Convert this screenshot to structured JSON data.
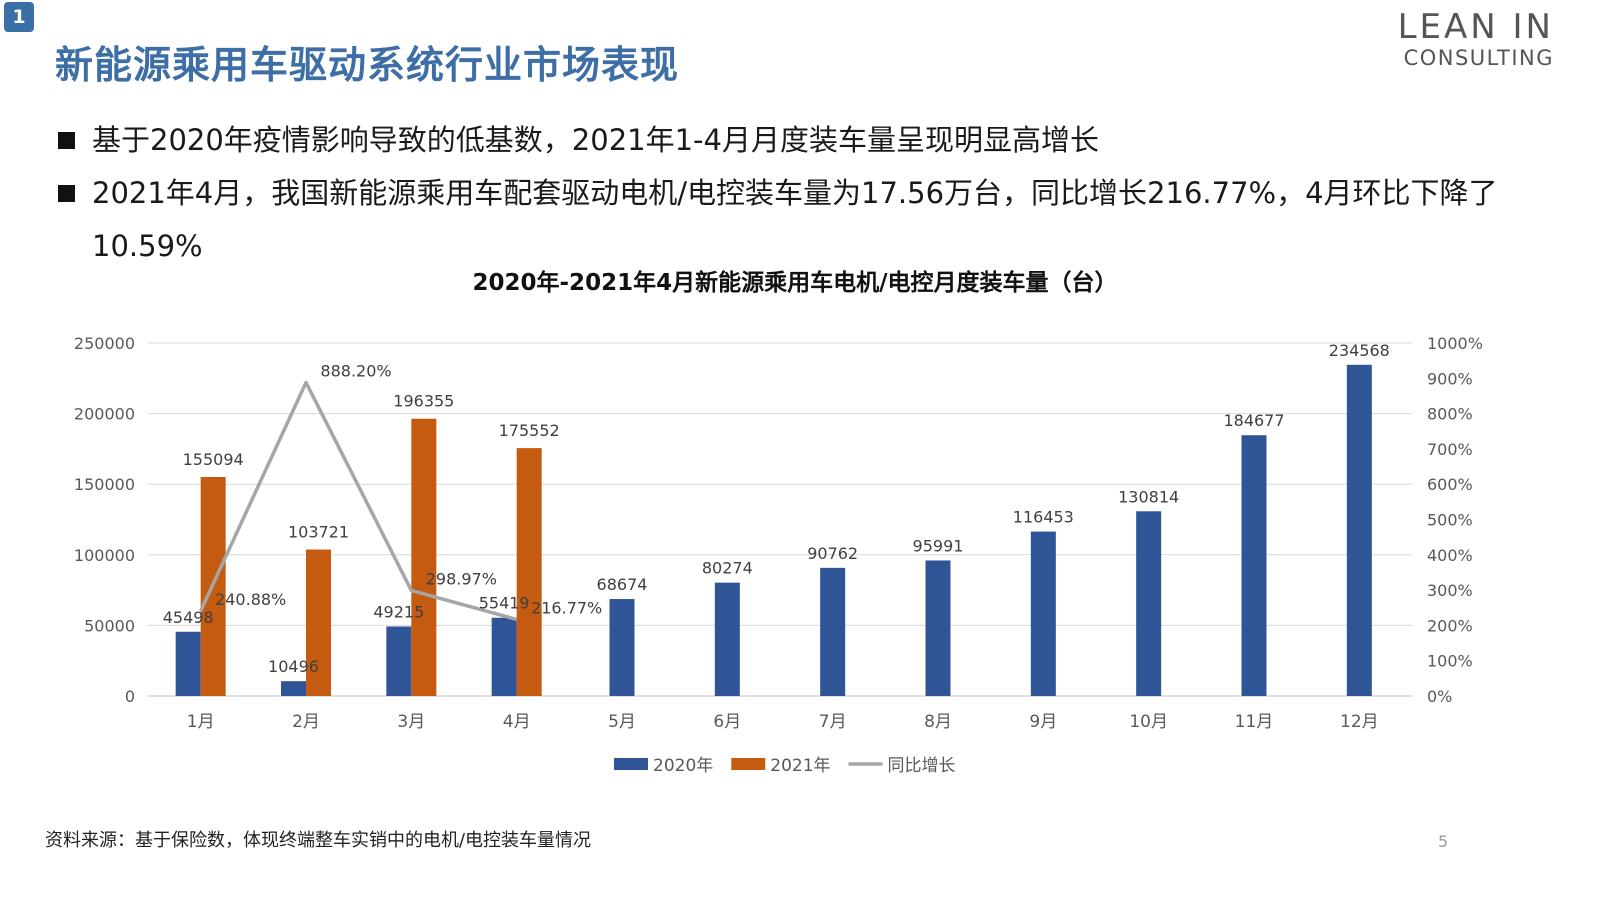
{
  "slide": {
    "badge": "1",
    "title": "新能源乘用车驱动系统行业市场表现",
    "logo_line1": "LEAN IN",
    "logo_line2": "CONSULTING",
    "bullets": [
      "基于2020年疫情影响导致的低基数，2021年1-4月月度装车量呈现明显高增长",
      "2021年4月，我国新能源乘用车配套驱动电机/电控装车量为17.56万台，同比增长216.77%，4月环比下降了10.59%"
    ],
    "footnote": "资料来源：基于保险数，体现终端整车实销中的电机/电控装车量情况",
    "page_number": "5"
  },
  "colors": {
    "title": "#3d6ea6",
    "series_2020": "#2f5597",
    "series_2021": "#c55a11",
    "growth_line": "#a6a6a6",
    "gridline": "#d9d9d9"
  },
  "chart_data": {
    "type": "bar",
    "title": "2020年-2021年4月新能源乘用车电机/电控月度装车量（台）",
    "categories": [
      "1月",
      "2月",
      "3月",
      "4月",
      "5月",
      "6月",
      "7月",
      "8月",
      "9月",
      "10月",
      "11月",
      "12月"
    ],
    "series": [
      {
        "name": "2020年",
        "type": "bar",
        "axis": "left",
        "values": [
          45498,
          10496,
          49215,
          55419,
          68674,
          80274,
          90762,
          95991,
          116453,
          130814,
          184677,
          234568
        ],
        "labels": [
          "45498",
          "10496",
          "49215",
          "55419",
          "68674",
          "80274",
          "90762",
          "95991",
          "116453",
          "130814",
          "184677",
          "234568"
        ]
      },
      {
        "name": "2021年",
        "type": "bar",
        "axis": "left",
        "values": [
          155094,
          103721,
          196355,
          175552,
          null,
          null,
          null,
          null,
          null,
          null,
          null,
          null
        ],
        "labels": [
          "155094",
          "103721",
          "196355",
          "175552"
        ]
      },
      {
        "name": "同比增长",
        "type": "line",
        "axis": "right",
        "values": [
          240.88,
          888.2,
          298.97,
          216.77,
          null,
          null,
          null,
          null,
          null,
          null,
          null,
          null
        ],
        "labels": [
          "240.88%",
          "888.20%",
          "298.97%",
          "216.77%"
        ]
      }
    ],
    "ylim": [
      0,
      250000
    ],
    "yticks": [
      "0",
      "50000",
      "100000",
      "150000",
      "200000",
      "250000"
    ],
    "y2lim": [
      0,
      1000
    ],
    "y2ticks": [
      "0%",
      "100%",
      "200%",
      "300%",
      "400%",
      "500%",
      "600%",
      "700%",
      "800%",
      "900%",
      "1000%"
    ],
    "grid": true,
    "legend": "bottom"
  }
}
